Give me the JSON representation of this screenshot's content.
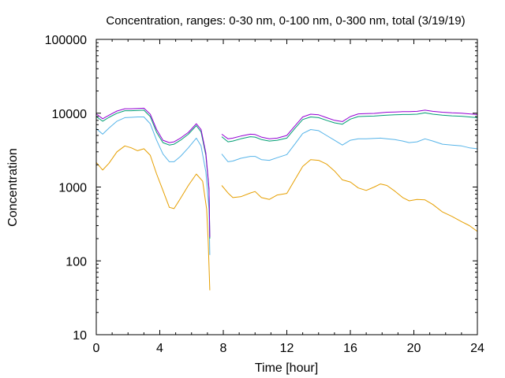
{
  "chart_data": {
    "type": "line",
    "title": "Concentration, ranges: 0-30 nm, 0-100 nm, 0-300 nm, total (3/19/19)",
    "xlabel": "Time [hour]",
    "ylabel": "Concentration",
    "xlim": [
      0,
      24
    ],
    "ylim": [
      10,
      100000
    ],
    "yscale": "log",
    "grid": false,
    "legend": "none",
    "xticks": [
      0,
      4,
      8,
      12,
      16,
      20,
      24
    ],
    "yticks": [
      10,
      100,
      1000,
      10000,
      100000
    ],
    "xtick_labels": [
      "0",
      "4",
      "8",
      "12",
      "16",
      "20",
      "24"
    ],
    "ytick_labels": [
      "10",
      "100",
      "1000",
      "10000",
      "100000"
    ],
    "series": [
      {
        "color": "#e69f00",
        "segments": [
          [
            [
              0,
              2150
            ],
            [
              0.4,
              1700
            ],
            [
              0.8,
              2100
            ],
            [
              1.3,
              3000
            ],
            [
              1.8,
              3600
            ],
            [
              2.2,
              3400
            ],
            [
              2.6,
              3100
            ],
            [
              3.0,
              3300
            ],
            [
              3.4,
              2700
            ],
            [
              3.8,
              1500
            ],
            [
              4.2,
              900
            ],
            [
              4.6,
              530
            ],
            [
              4.9,
              510
            ],
            [
              5.3,
              700
            ],
            [
              5.8,
              1050
            ],
            [
              6.3,
              1500
            ],
            [
              6.7,
              1200
            ],
            [
              6.95,
              500
            ],
            [
              7.05,
              180
            ],
            [
              7.15,
              40
            ]
          ],
          [
            [
              7.9,
              1050
            ],
            [
              8.3,
              830
            ],
            [
              8.6,
              720
            ],
            [
              9.1,
              740
            ],
            [
              9.7,
              830
            ],
            [
              10.0,
              870
            ],
            [
              10.4,
              720
            ],
            [
              10.9,
              680
            ],
            [
              11.4,
              780
            ],
            [
              12.0,
              820
            ],
            [
              12.5,
              1250
            ],
            [
              13.0,
              1900
            ],
            [
              13.5,
              2350
            ],
            [
              14.0,
              2300
            ],
            [
              14.5,
              2050
            ],
            [
              15.0,
              1650
            ],
            [
              15.5,
              1250
            ],
            [
              16.0,
              1170
            ],
            [
              16.5,
              970
            ],
            [
              17.0,
              900
            ],
            [
              17.5,
              1000
            ],
            [
              17.9,
              1100
            ],
            [
              18.3,
              1050
            ],
            [
              18.8,
              880
            ],
            [
              19.3,
              720
            ],
            [
              19.7,
              650
            ],
            [
              20.2,
              680
            ],
            [
              20.7,
              670
            ],
            [
              21.2,
              580
            ],
            [
              21.8,
              460
            ],
            [
              22.4,
              400
            ],
            [
              23.0,
              340
            ],
            [
              23.5,
              300
            ],
            [
              24.0,
              250
            ]
          ]
        ]
      },
      {
        "color": "#56b4e9",
        "segments": [
          [
            [
              0,
              6200
            ],
            [
              0.4,
              5200
            ],
            [
              0.8,
              6300
            ],
            [
              1.3,
              7800
            ],
            [
              1.8,
              8700
            ],
            [
              2.2,
              8800
            ],
            [
              2.6,
              8900
            ],
            [
              3.0,
              8900
            ],
            [
              3.4,
              7200
            ],
            [
              3.8,
              4300
            ],
            [
              4.2,
              2800
            ],
            [
              4.6,
              2200
            ],
            [
              4.9,
              2200
            ],
            [
              5.3,
              2600
            ],
            [
              5.8,
              3400
            ],
            [
              6.3,
              4600
            ],
            [
              6.6,
              3600
            ],
            [
              6.9,
              1600
            ],
            [
              7.1,
              500
            ],
            [
              7.15,
              120
            ]
          ],
          [
            [
              7.9,
              2800
            ],
            [
              8.3,
              2200
            ],
            [
              8.6,
              2250
            ],
            [
              9.1,
              2450
            ],
            [
              9.7,
              2600
            ],
            [
              10.0,
              2600
            ],
            [
              10.4,
              2350
            ],
            [
              10.9,
              2300
            ],
            [
              11.4,
              2500
            ],
            [
              12.0,
              2750
            ],
            [
              12.5,
              3800
            ],
            [
              13.0,
              5300
            ],
            [
              13.5,
              6000
            ],
            [
              14.0,
              5800
            ],
            [
              14.5,
              5000
            ],
            [
              15.0,
              4300
            ],
            [
              15.5,
              3700
            ],
            [
              16.0,
              4300
            ],
            [
              16.5,
              4500
            ],
            [
              17.0,
              4500
            ],
            [
              17.5,
              4550
            ],
            [
              17.9,
              4600
            ],
            [
              18.3,
              4500
            ],
            [
              18.8,
              4400
            ],
            [
              19.3,
              4200
            ],
            [
              19.7,
              4000
            ],
            [
              20.2,
              4100
            ],
            [
              20.7,
              4500
            ],
            [
              21.2,
              4200
            ],
            [
              21.8,
              3800
            ],
            [
              22.4,
              3700
            ],
            [
              23.0,
              3600
            ],
            [
              23.5,
              3400
            ],
            [
              24.0,
              3300
            ]
          ]
        ]
      },
      {
        "color": "#009e73",
        "segments": [
          [
            [
              0,
              9000
            ],
            [
              0.4,
              7800
            ],
            [
              0.8,
              8800
            ],
            [
              1.3,
              10000
            ],
            [
              1.8,
              10800
            ],
            [
              2.2,
              10800
            ],
            [
              2.6,
              10900
            ],
            [
              3.0,
              11000
            ],
            [
              3.4,
              9000
            ],
            [
              3.8,
              5500
            ],
            [
              4.2,
              4000
            ],
            [
              4.6,
              3700
            ],
            [
              4.9,
              3800
            ],
            [
              5.3,
              4300
            ],
            [
              5.8,
              5200
            ],
            [
              6.3,
              6800
            ],
            [
              6.6,
              5600
            ],
            [
              6.9,
              2700
            ],
            [
              7.1,
              900
            ],
            [
              7.15,
              200
            ]
          ],
          [
            [
              7.9,
              4800
            ],
            [
              8.3,
              4100
            ],
            [
              8.6,
              4200
            ],
            [
              9.1,
              4500
            ],
            [
              9.7,
              4800
            ],
            [
              10.0,
              4750
            ],
            [
              10.4,
              4400
            ],
            [
              10.9,
              4200
            ],
            [
              11.4,
              4300
            ],
            [
              12.0,
              4600
            ],
            [
              12.5,
              6200
            ],
            [
              13.0,
              8200
            ],
            [
              13.5,
              8900
            ],
            [
              14.0,
              8700
            ],
            [
              14.5,
              8000
            ],
            [
              15.0,
              7400
            ],
            [
              15.5,
              7100
            ],
            [
              16.0,
              8300
            ],
            [
              16.5,
              9000
            ],
            [
              17.0,
              9100
            ],
            [
              17.5,
              9150
            ],
            [
              17.9,
              9300
            ],
            [
              18.3,
              9400
            ],
            [
              18.8,
              9500
            ],
            [
              19.3,
              9600
            ],
            [
              19.7,
              9600
            ],
            [
              20.2,
              9700
            ],
            [
              20.7,
              10100
            ],
            [
              21.2,
              9700
            ],
            [
              21.8,
              9400
            ],
            [
              22.4,
              9200
            ],
            [
              23.0,
              9100
            ],
            [
              23.5,
              8900
            ],
            [
              24.0,
              8700
            ]
          ]
        ]
      },
      {
        "color": "#9400d3",
        "segments": [
          [
            [
              0,
              9800
            ],
            [
              0.4,
              8400
            ],
            [
              0.8,
              9400
            ],
            [
              1.3,
              10700
            ],
            [
              1.8,
              11500
            ],
            [
              2.2,
              11500
            ],
            [
              2.6,
              11600
            ],
            [
              3.0,
              11700
            ],
            [
              3.4,
              9700
            ],
            [
              3.8,
              6000
            ],
            [
              4.2,
              4300
            ],
            [
              4.6,
              4000
            ],
            [
              4.9,
              4100
            ],
            [
              5.3,
              4600
            ],
            [
              5.8,
              5500
            ],
            [
              6.3,
              7200
            ],
            [
              6.6,
              6000
            ],
            [
              6.9,
              2900
            ],
            [
              7.1,
              950
            ],
            [
              7.15,
              210
            ]
          ],
          [
            [
              7.9,
              5200
            ],
            [
              8.3,
              4500
            ],
            [
              8.6,
              4600
            ],
            [
              9.1,
              4900
            ],
            [
              9.7,
              5200
            ],
            [
              10.0,
              5150
            ],
            [
              10.4,
              4750
            ],
            [
              10.9,
              4500
            ],
            [
              11.4,
              4600
            ],
            [
              12.0,
              5000
            ],
            [
              12.5,
              6700
            ],
            [
              13.0,
              8900
            ],
            [
              13.5,
              9700
            ],
            [
              14.0,
              9500
            ],
            [
              14.5,
              8700
            ],
            [
              15.0,
              8000
            ],
            [
              15.5,
              7700
            ],
            [
              16.0,
              9000
            ],
            [
              16.5,
              9800
            ],
            [
              17.0,
              9900
            ],
            [
              17.5,
              9950
            ],
            [
              17.9,
              10100
            ],
            [
              18.3,
              10300
            ],
            [
              18.8,
              10400
            ],
            [
              19.3,
              10500
            ],
            [
              19.7,
              10500
            ],
            [
              20.2,
              10600
            ],
            [
              20.7,
              11000
            ],
            [
              21.2,
              10600
            ],
            [
              21.8,
              10300
            ],
            [
              22.4,
              10100
            ],
            [
              23.0,
              10000
            ],
            [
              23.5,
              9800
            ],
            [
              24.0,
              9600
            ]
          ]
        ]
      }
    ]
  }
}
